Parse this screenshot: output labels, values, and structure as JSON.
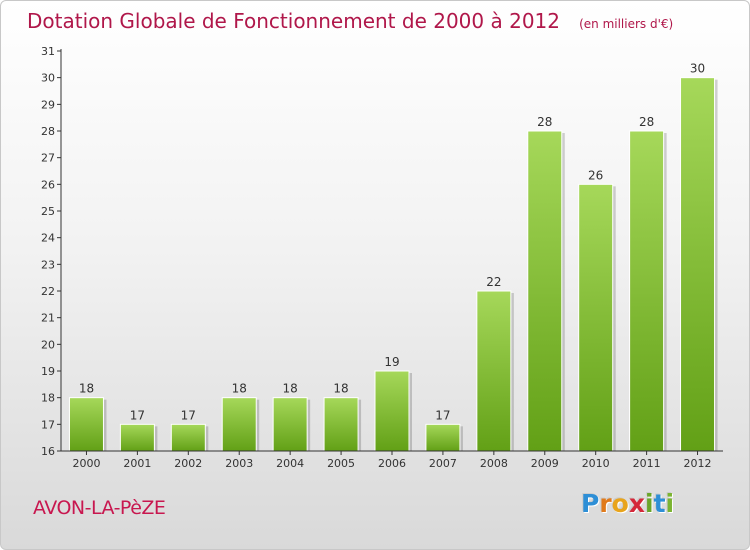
{
  "title": "Dotation Globale de Fonctionnement de 2000 à 2012",
  "subtitle": "(en milliers d'€)",
  "commune": "AVON-LA-PèZE",
  "logo": {
    "letters": [
      "P",
      "r",
      "o",
      "x",
      "i",
      "t",
      "i"
    ],
    "colors": [
      "#2e8fd6",
      "#e07a1b",
      "#e8a41c",
      "#d4283a",
      "#6aa52a",
      "#2e8fd6",
      "#7bb431"
    ]
  },
  "colors": {
    "title": "#b0174a",
    "bar_top": "#a6d85a",
    "bar_bottom": "#62a016",
    "axis": "#333333"
  },
  "chart_data": {
    "type": "bar",
    "categories": [
      "2000",
      "2001",
      "2002",
      "2003",
      "2004",
      "2005",
      "2006",
      "2007",
      "2008",
      "2009",
      "2010",
      "2011",
      "2012"
    ],
    "values": [
      18,
      17,
      17,
      18,
      18,
      18,
      19,
      17,
      22,
      28,
      26,
      28,
      30
    ],
    "data_labels": [
      "18",
      "17",
      "17",
      "18",
      "18",
      "18",
      "19",
      "17",
      "22",
      "28",
      "26",
      "28",
      "30"
    ],
    "ylim": [
      16,
      31
    ],
    "yticks": [
      "16",
      "17",
      "18",
      "19",
      "20",
      "21",
      "22",
      "23",
      "24",
      "25",
      "26",
      "27",
      "28",
      "29",
      "30",
      "31"
    ],
    "grid": false,
    "legend": "none"
  }
}
